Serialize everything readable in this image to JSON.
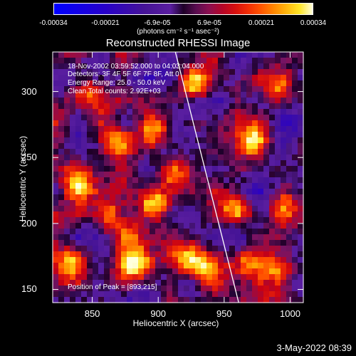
{
  "chart_data": {
    "type": "heatmap",
    "title": "Reconstructed RHESSI Image",
    "xlabel": "Heliocentric X (arcsec)",
    "ylabel": "Heliocentric Y (arcsec)",
    "xlim": [
      820,
      1010
    ],
    "ylim": [
      140,
      330
    ],
    "xticks": [
      850,
      900,
      950,
      1000
    ],
    "yticks": [
      150,
      200,
      250,
      300
    ],
    "colorbar": {
      "ticks": [
        "-0.00034",
        "-0.00021",
        "-6.9e-05",
        "6.9e-05",
        "0.00021",
        "0.00034"
      ],
      "units": "(photons cm⁻² s⁻¹ asec⁻²)",
      "range": [
        -0.00034,
        0.00034
      ]
    },
    "annotations": {
      "time": "18-Nov-2002 03:59:52.000 to 04:03:04.000",
      "detectors": "Detectors: 3F 4F 5F 6F 7F 8F, Att 0",
      "energy": "Energy Range: 25.0 - 50.0 keV",
      "clean": "Clean     Total counts: 2.92E+03",
      "peak": "Position of Peak = [893,215]"
    },
    "limb_line": {
      "x": [
        913,
        961
      ],
      "y": [
        330,
        140
      ]
    },
    "bright_regions": [
      {
        "x": 870,
        "y": 262,
        "level": 0.85
      },
      {
        "x": 898,
        "y": 272,
        "level": 0.9
      },
      {
        "x": 912,
        "y": 238,
        "level": 0.8
      },
      {
        "x": 897,
        "y": 215,
        "level": 1.0
      },
      {
        "x": 862,
        "y": 205,
        "level": 0.85
      },
      {
        "x": 838,
        "y": 230,
        "level": 0.7
      },
      {
        "x": 835,
        "y": 170,
        "level": 0.75
      },
      {
        "x": 880,
        "y": 168,
        "level": 0.75
      },
      {
        "x": 880,
        "y": 190,
        "level": 0.65
      },
      {
        "x": 928,
        "y": 304,
        "level": 0.9
      },
      {
        "x": 972,
        "y": 262,
        "level": 0.95
      },
      {
        "x": 990,
        "y": 300,
        "level": 0.6
      },
      {
        "x": 958,
        "y": 216,
        "level": 0.65
      },
      {
        "x": 995,
        "y": 212,
        "level": 0.55
      },
      {
        "x": 965,
        "y": 170,
        "level": 0.7
      },
      {
        "x": 935,
        "y": 165,
        "level": 0.55
      },
      {
        "x": 990,
        "y": 165,
        "level": 0.55
      },
      {
        "x": 918,
        "y": 175,
        "level": 0.6
      },
      {
        "x": 845,
        "y": 300,
        "level": 0.5
      }
    ]
  },
  "date_stamp": "3-May-2022 08:39"
}
